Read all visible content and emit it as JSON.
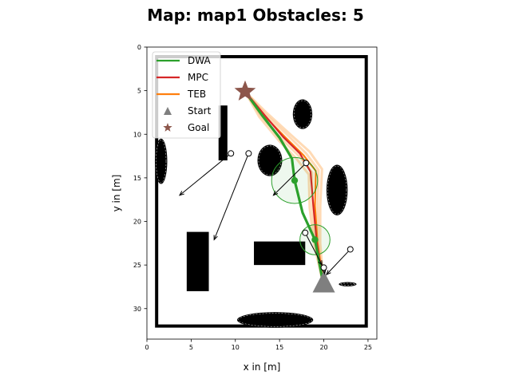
{
  "chart_data": {
    "type": "scatter",
    "title": "Map: map1 Obstacles: 5",
    "xlabel": "x in [m]",
    "ylabel": "y in [m]",
    "xlim": [
      0,
      26
    ],
    "ylim": [
      0,
      33.5
    ],
    "y_inverted": true,
    "xticks": [
      0,
      5,
      10,
      15,
      20,
      25
    ],
    "yticks": [
      0,
      5,
      10,
      15,
      20,
      25,
      30
    ],
    "grid": false,
    "legend_position": "upper-left",
    "legend": [
      {
        "label": "DWA",
        "color": "#2ca02c",
        "kind": "line"
      },
      {
        "label": "MPC",
        "color": "#d62728",
        "kind": "line"
      },
      {
        "label": "TEB",
        "color": "#ff7f0e",
        "kind": "line"
      },
      {
        "label": "Start",
        "color": "#7f7f7f",
        "kind": "triangle"
      },
      {
        "label": "Goal",
        "color": "#8c564b",
        "kind": "star"
      }
    ],
    "boundary": {
      "x0": 1.1,
      "x1": 24.8,
      "y0": 1.1,
      "y1": 32.0
    },
    "rect_obstacles": [
      {
        "x0": 8.1,
        "x1": 9.1,
        "y0": 6.7,
        "y1": 13.0
      },
      {
        "x0": 4.5,
        "x1": 7.0,
        "y0": 21.2,
        "y1": 28.0
      },
      {
        "x0": 12.1,
        "x1": 17.9,
        "y0": 22.3,
        "y1": 25.0
      }
    ],
    "blob_obstacles": [
      {
        "cx": 17.6,
        "cy": 7.7,
        "rx": 1.1,
        "ry": 1.7
      },
      {
        "cx": 13.9,
        "cy": 13.0,
        "rx": 1.4,
        "ry": 1.8
      },
      {
        "cx": 21.5,
        "cy": 16.4,
        "rx": 1.2,
        "ry": 2.9
      },
      {
        "cx": 1.6,
        "cy": 13.1,
        "rx": 0.7,
        "ry": 2.6
      },
      {
        "cx": 14.5,
        "cy": 31.3,
        "rx": 4.3,
        "ry": 0.9
      },
      {
        "cx": 22.7,
        "cy": 27.2,
        "rx": 1.0,
        "ry": 0.25
      }
    ],
    "start": {
      "x": 20.0,
      "y": 27.5
    },
    "goal": {
      "x": 11.1,
      "y": 5.1
    },
    "dynamic_obstacles": [
      {
        "x": 9.5,
        "y": 12.2,
        "tx": 3.7,
        "ty": 17.0
      },
      {
        "x": 11.5,
        "y": 12.2,
        "tx": 7.6,
        "ty": 22.1
      },
      {
        "x": 18.0,
        "y": 13.3,
        "tx": 14.3,
        "ty": 17.0
      },
      {
        "x": 17.9,
        "y": 21.3,
        "tx": 19.8,
        "ty": 25.0
      },
      {
        "x": 20.0,
        "y": 25.3,
        "tx": 20.1,
        "ty": 26.0
      },
      {
        "x": 23.0,
        "y": 23.2,
        "tx": 20.3,
        "ty": 26.1
      }
    ],
    "robot_markers": [
      {
        "x": 16.7,
        "y": 15.3,
        "r": 2.6,
        "color": "#2ca02c"
      },
      {
        "x": 19.0,
        "y": 22.1,
        "r": 1.7,
        "color": "#2ca02c"
      }
    ],
    "series": [
      {
        "name": "TEB",
        "color": "#ff7f0e",
        "x": [
          11.1,
          13.2,
          15.6,
          17.7,
          19.1,
          19.0,
          19.3,
          20.0
        ],
        "y": [
          5.1,
          7.8,
          10.3,
          12.4,
          14.2,
          18.2,
          22.5,
          27.5
        ]
      },
      {
        "name": "MPC",
        "color": "#d62728",
        "x": [
          11.1,
          13.3,
          15.4,
          17.3,
          18.5,
          18.8,
          19.2,
          20.0
        ],
        "y": [
          5.1,
          7.8,
          10.3,
          12.2,
          14.3,
          18.0,
          22.3,
          27.5
        ]
      },
      {
        "name": "DWA",
        "color": "#2ca02c",
        "x": [
          11.1,
          13.0,
          15.0,
          16.4,
          16.7,
          17.6,
          19.0,
          20.0
        ],
        "y": [
          5.1,
          7.8,
          10.4,
          12.8,
          15.3,
          19.0,
          22.1,
          27.5
        ]
      }
    ],
    "teb_candidates": [
      {
        "x": [
          11.1,
          13.6,
          16.2,
          18.4,
          19.8,
          19.6,
          19.6,
          20.0
        ],
        "y": [
          5.1,
          7.6,
          10.0,
          12.0,
          14.0,
          18.2,
          22.5,
          27.5
        ]
      },
      {
        "x": [
          11.1,
          13.4,
          15.9,
          18.0,
          19.4,
          19.3,
          19.4,
          20.0
        ],
        "y": [
          5.1,
          7.7,
          10.1,
          12.2,
          14.1,
          18.2,
          22.5,
          27.5
        ]
      },
      {
        "x": [
          11.1,
          12.9,
          15.2,
          17.3,
          18.7,
          18.7,
          19.1,
          20.0
        ],
        "y": [
          5.1,
          7.9,
          10.5,
          12.6,
          14.4,
          18.3,
          22.6,
          27.5
        ]
      },
      {
        "x": [
          11.1,
          12.7,
          14.9,
          16.9,
          18.3,
          18.4,
          18.9,
          20.0
        ],
        "y": [
          5.1,
          8.0,
          10.7,
          12.8,
          14.6,
          18.4,
          22.6,
          27.5
        ]
      }
    ]
  }
}
